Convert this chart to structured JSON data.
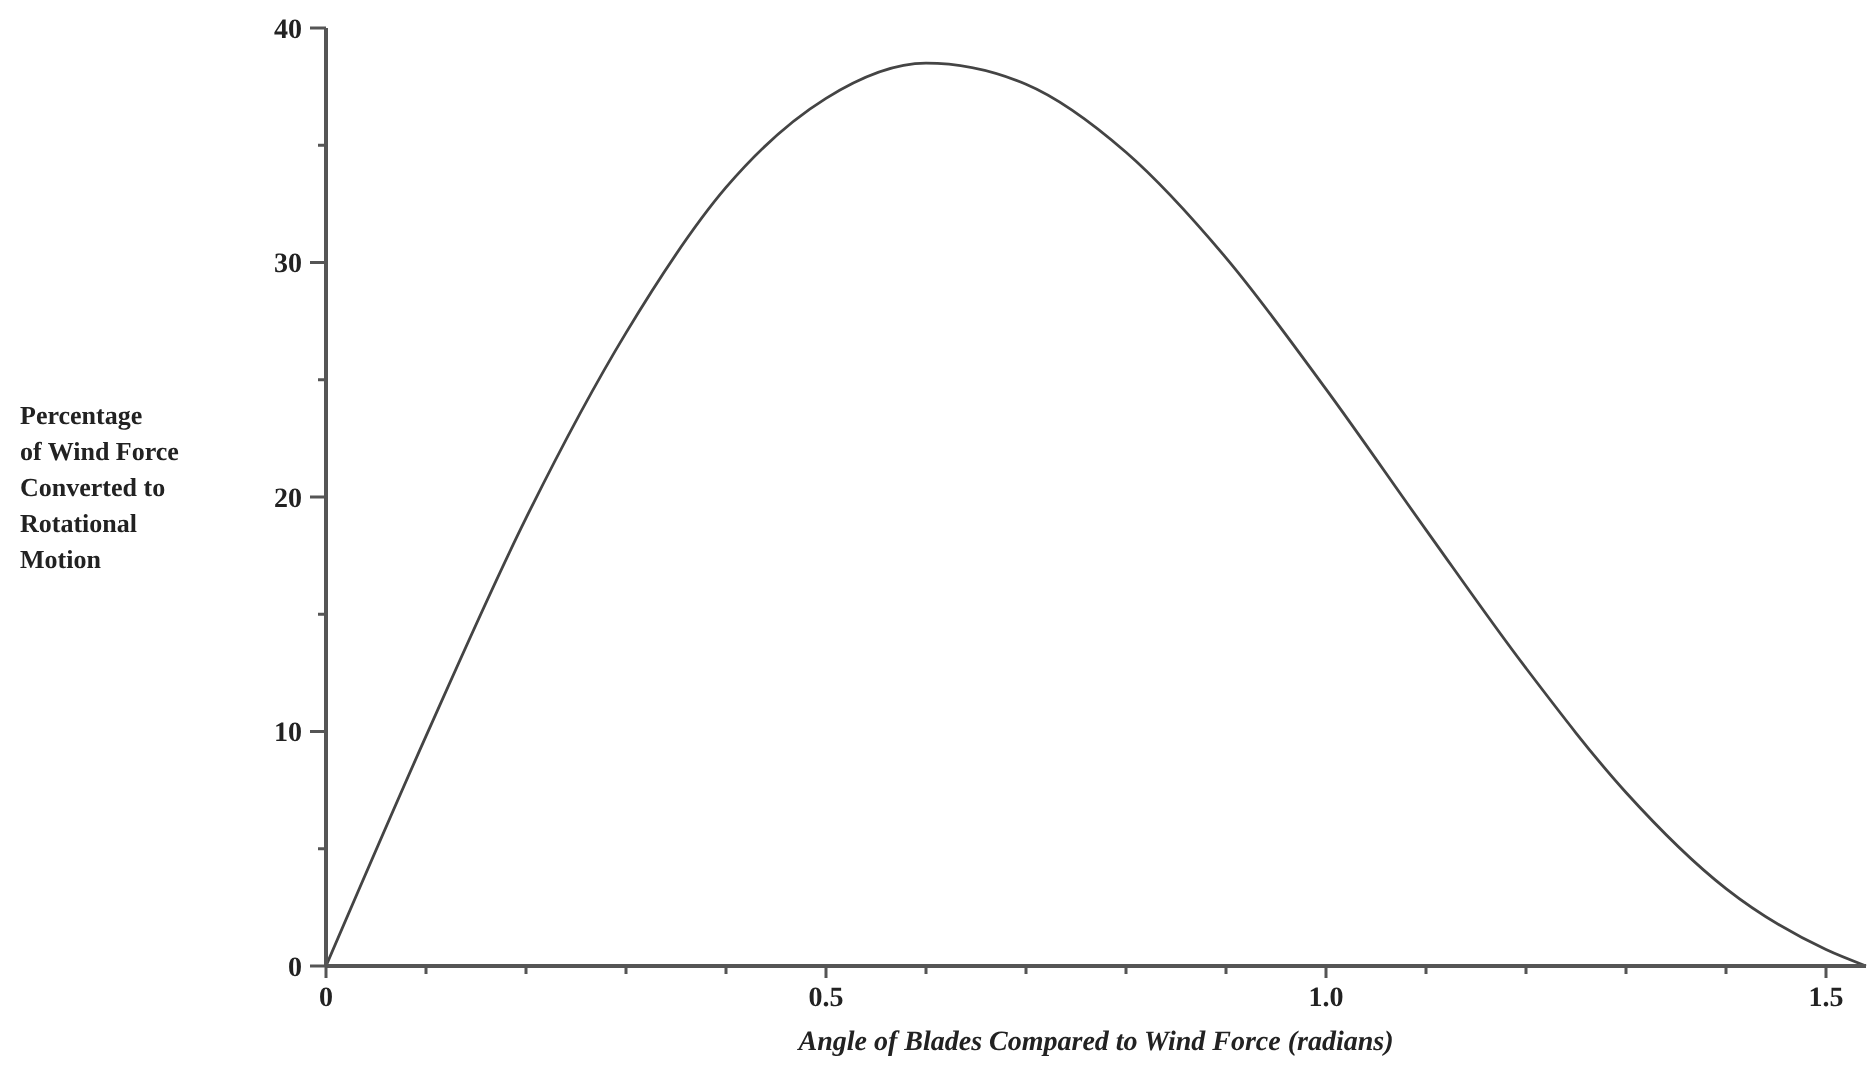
{
  "chart_data": {
    "type": "line",
    "xlabel": "Angle of Blades Compared to Wind Force (radians)",
    "ylabel": "Percentage\nof Wind Force\nConverted to\nRotational\nMotion",
    "series": [
      {
        "color": "#444444",
        "x": [
          0,
          0.1,
          0.2,
          0.3,
          0.4,
          0.5,
          0.6,
          0.7,
          0.8,
          0.9,
          1.0,
          1.1,
          1.2,
          1.3,
          1.4,
          1.5,
          1.54
        ],
        "values": [
          0,
          9.8,
          19.1,
          27.0,
          33.2,
          37.0,
          38.5,
          37.6,
          34.7,
          30.2,
          24.6,
          18.6,
          12.7,
          7.4,
          3.3,
          0.7,
          0
        ]
      }
    ],
    "xlim": [
      0,
      1.54
    ],
    "ylim": [
      0,
      40
    ],
    "xticks": [
      {
        "value": 0,
        "label": "0"
      },
      {
        "value": 0.1,
        "label": null
      },
      {
        "value": 0.2,
        "label": null
      },
      {
        "value": 0.3,
        "label": null
      },
      {
        "value": 0.4,
        "label": null
      },
      {
        "value": 0.5,
        "label": "0.5"
      },
      {
        "value": 0.6,
        "label": null
      },
      {
        "value": 0.7,
        "label": null
      },
      {
        "value": 0.8,
        "label": null
      },
      {
        "value": 0.9,
        "label": null
      },
      {
        "value": 1.0,
        "label": "1.0"
      },
      {
        "value": 1.1,
        "label": null
      },
      {
        "value": 1.2,
        "label": null
      },
      {
        "value": 1.3,
        "label": null
      },
      {
        "value": 1.4,
        "label": null
      },
      {
        "value": 1.5,
        "label": "1.5"
      }
    ],
    "yticks": [
      0,
      {
        "value": 5,
        "label": null
      },
      10,
      {
        "value": 15,
        "label": null
      },
      20,
      {
        "value": 25,
        "label": null
      },
      30,
      {
        "value": 35,
        "label": null
      },
      40
    ],
    "grid": false,
    "marker": "none",
    "line_style": "solid"
  }
}
